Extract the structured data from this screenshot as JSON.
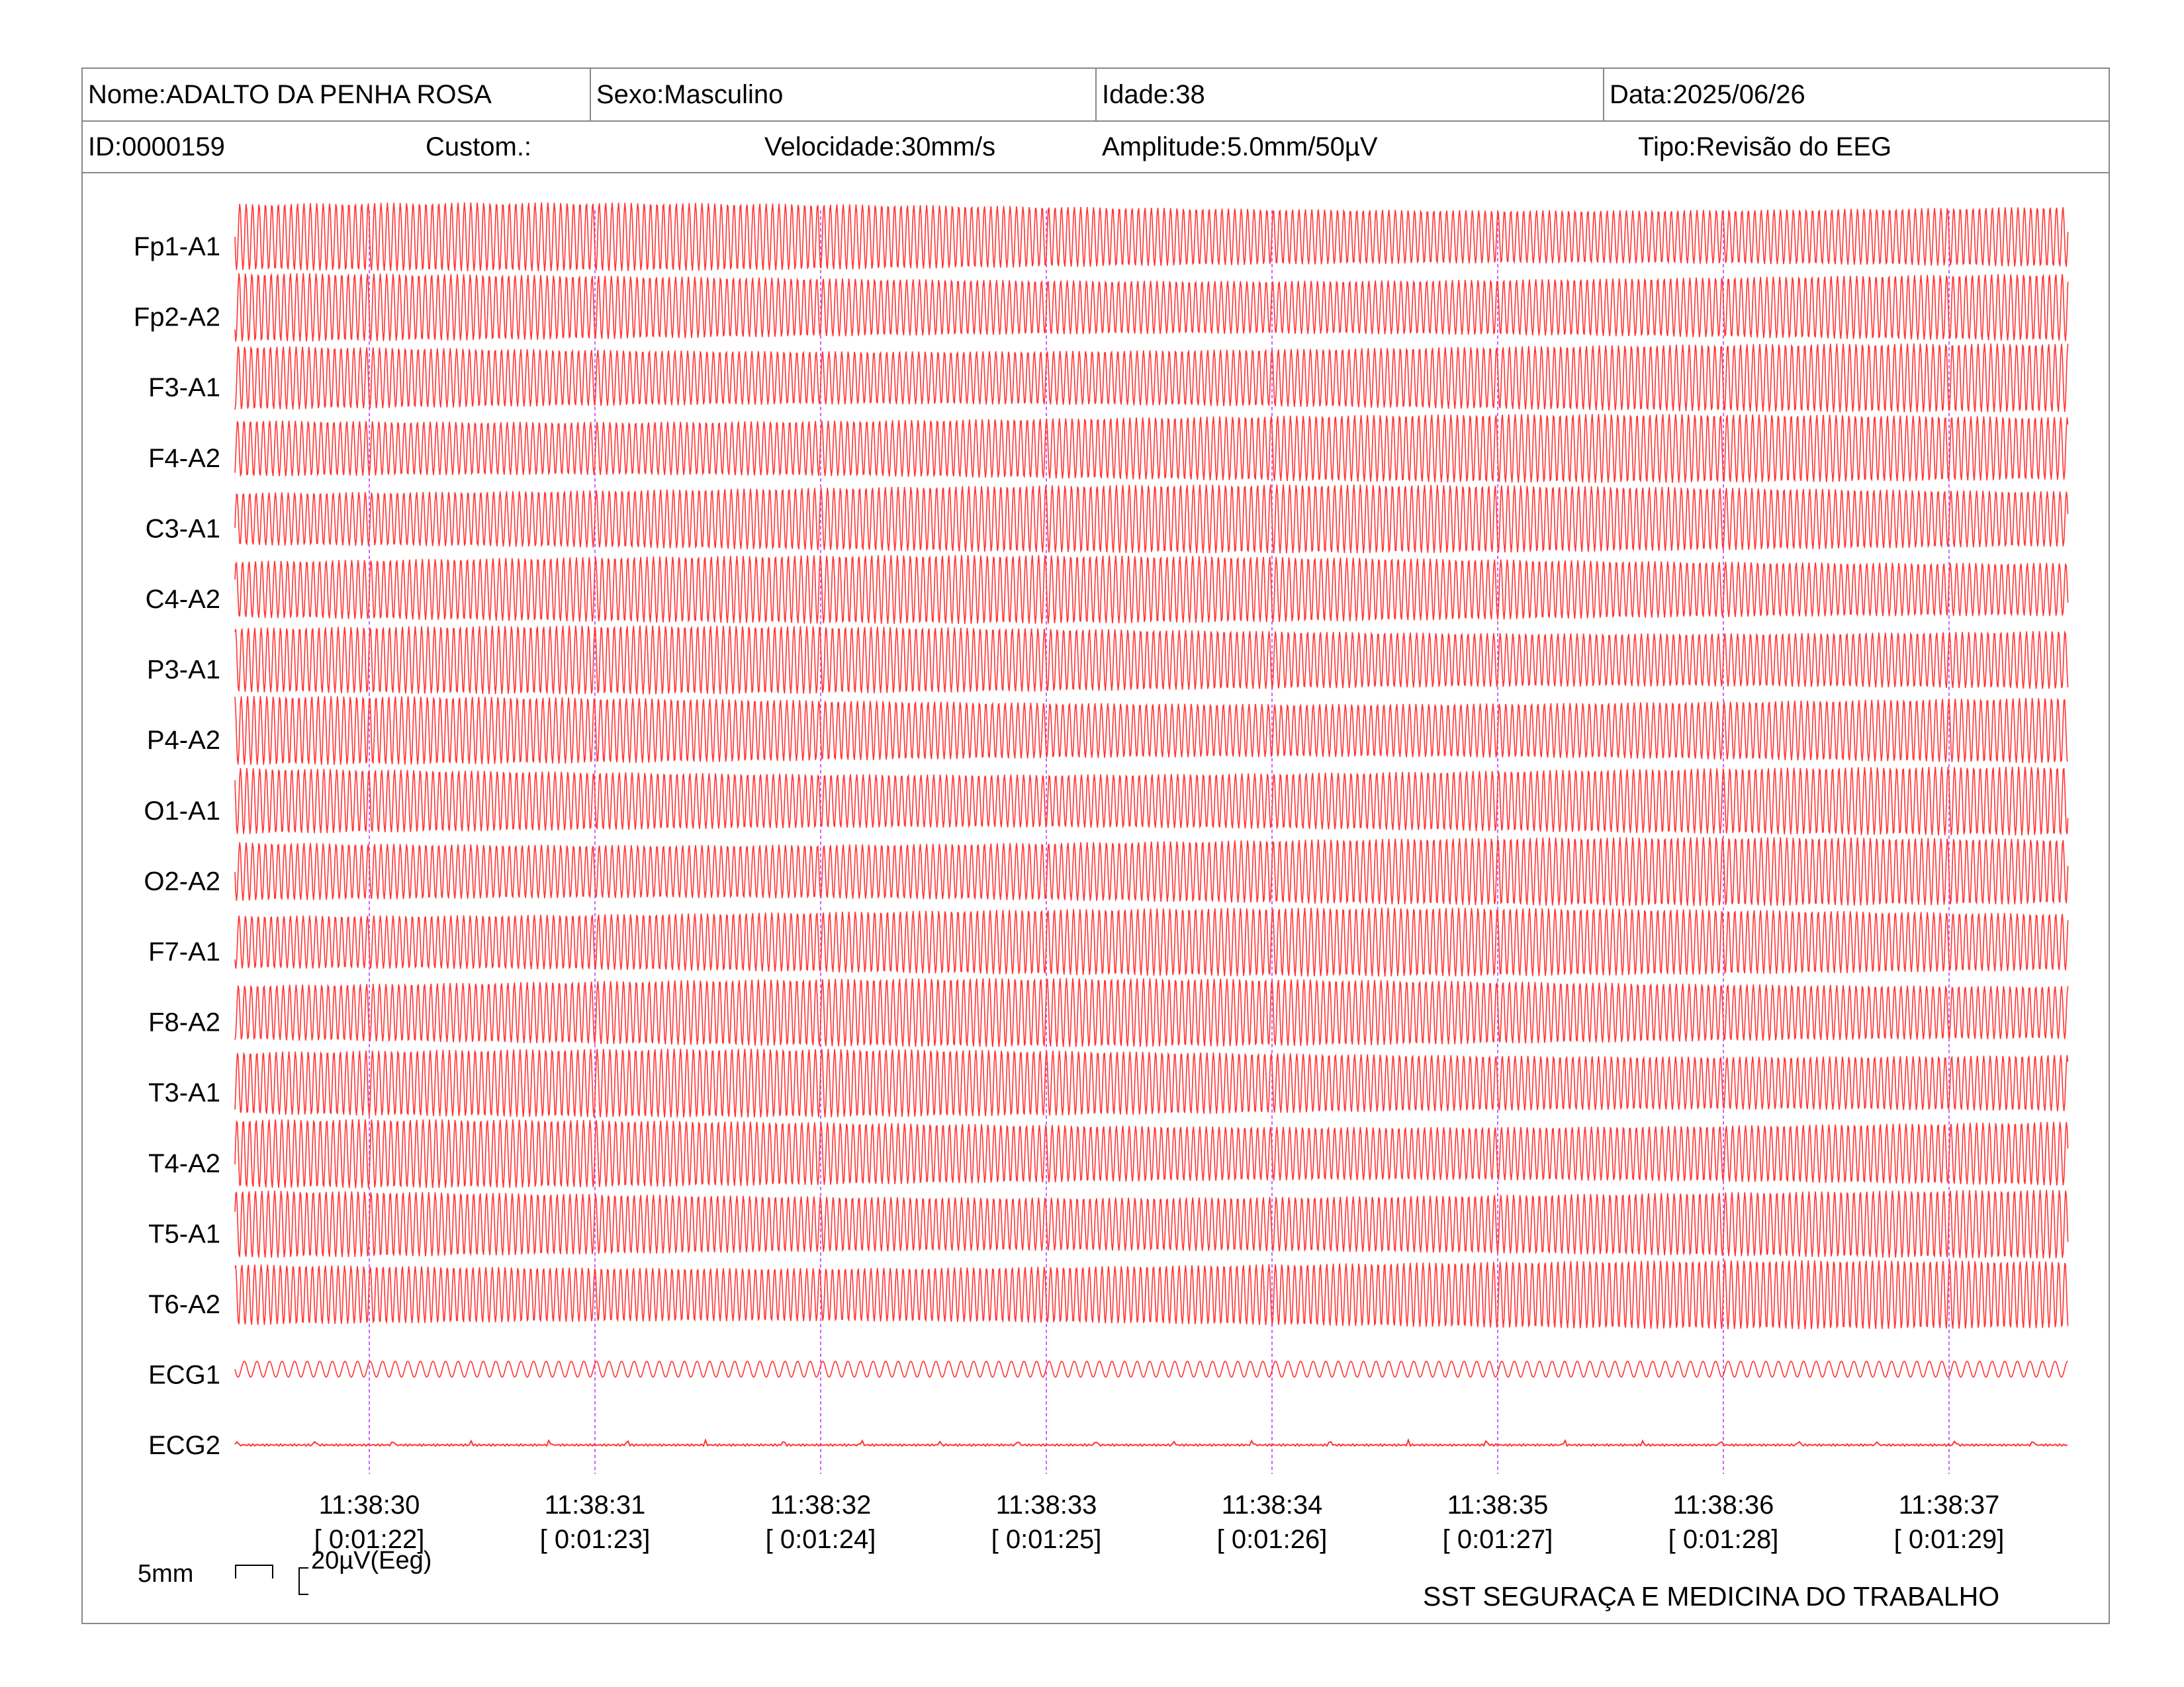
{
  "header": {
    "row1": [
      {
        "text": "Nome:ADALTO DA PENHA ROSA"
      },
      {
        "text": "Sexo:Masculino"
      },
      {
        "text": "Idade:38"
      },
      {
        "text": "Data:2025/06/26"
      }
    ],
    "row2": [
      {
        "text": "ID:0000159"
      },
      {
        "text": "Custom.:"
      },
      {
        "text": "Velocidade:30mm/s"
      },
      {
        "text": "Amplitude:5.0mm/50µV"
      },
      {
        "text": "Tipo:Revisão do EEG"
      }
    ]
  },
  "channels": [
    "Fp1-A1",
    "Fp2-A2",
    "F3-A1",
    "F4-A2",
    "C3-A1",
    "C4-A2",
    "P3-A1",
    "P4-A2",
    "O1-A1",
    "O2-A2",
    "F7-A1",
    "F8-A2",
    "T3-A1",
    "T4-A2",
    "T5-A1",
    "T6-A2",
    "ECG1",
    "ECG2"
  ],
  "time_marks": [
    {
      "time": "11:38:30",
      "elapsed": "[ 0:01:22]"
    },
    {
      "time": "11:38:31",
      "elapsed": "[ 0:01:23]"
    },
    {
      "time": "11:38:32",
      "elapsed": "[ 0:01:24]"
    },
    {
      "time": "11:38:33",
      "elapsed": "[ 0:01:25]"
    },
    {
      "time": "11:38:34",
      "elapsed": "[ 0:01:26]"
    },
    {
      "time": "11:38:35",
      "elapsed": "[ 0:01:27]"
    },
    {
      "time": "11:38:36",
      "elapsed": "[ 0:01:28]"
    },
    {
      "time": "11:38:37",
      "elapsed": "[ 0:01:29]"
    }
  ],
  "scale": {
    "time_label": "5mm",
    "amplitude_label": "20µV(Eeg)"
  },
  "footer": {
    "company": "SST SEGURAÇA E MEDICINA DO TRABALHO"
  },
  "colors": {
    "trace": "#ff3333",
    "marker": "#cc66ff",
    "border": "#888888"
  }
}
